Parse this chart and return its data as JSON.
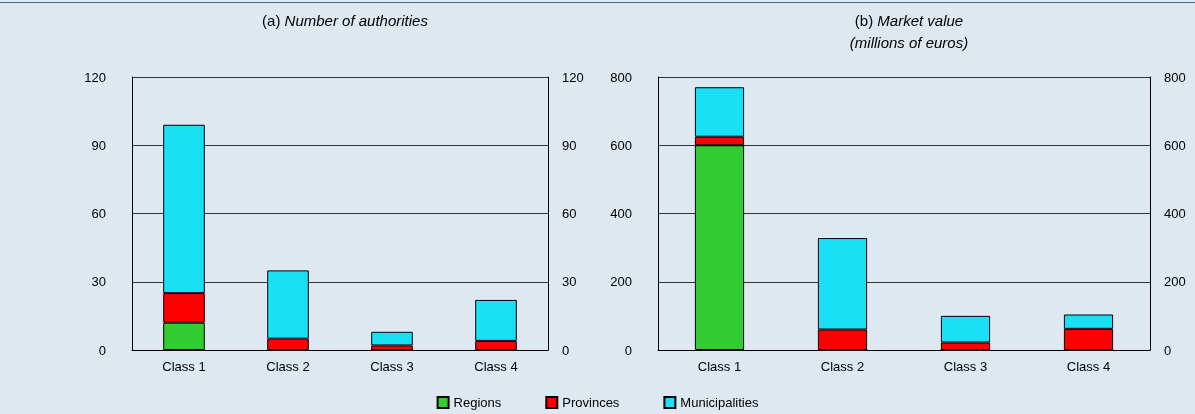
{
  "chart_data": [
    {
      "type": "bar",
      "title": "(a) Number of authorities",
      "categories": [
        "Class 1",
        "Class 2",
        "Class 3",
        "Class 4"
      ],
      "stacked": true,
      "series": [
        {
          "color": "#33cc33",
          "values": [
            12,
            0,
            0,
            0
          ]
        },
        {
          "color": "#ff0000",
          "values": [
            13,
            5,
            2,
            4
          ]
        },
        {
          "color": "#1ae0f5",
          "values": [
            74,
            30,
            6,
            18
          ]
        }
      ],
      "ylim": [
        0,
        120
      ],
      "yticks": [
        0,
        30,
        60,
        90,
        120
      ],
      "y2lim": [
        0,
        120
      ],
      "y2ticks": [
        0,
        30,
        60,
        90,
        120
      ],
      "grid": "y",
      "legend": false
    },
    {
      "type": "bar",
      "title": "(b) Market value\n(millions of euros)",
      "categories": [
        "Class 1",
        "Class 2",
        "Class 3",
        "Class 4"
      ],
      "stacked": true,
      "series": [
        {
          "name": "Regions",
          "color": "#33cc33",
          "values": [
            600,
            0,
            0,
            0
          ]
        },
        {
          "name": "Provinces",
          "color": "#ff0000",
          "values": [
            25,
            60,
            22,
            62
          ]
        },
        {
          "name": "Municipalities",
          "color": "#1ae0f5",
          "values": [
            145,
            268,
            78,
            42
          ]
        }
      ],
      "ylim": [
        0,
        800
      ],
      "yticks": [
        0,
        200,
        400,
        600,
        800
      ],
      "y2lim": [
        0,
        800
      ],
      "y2ticks": [
        0,
        200,
        400,
        600,
        800
      ],
      "grid": "y",
      "legend": "bottom"
    }
  ]
}
